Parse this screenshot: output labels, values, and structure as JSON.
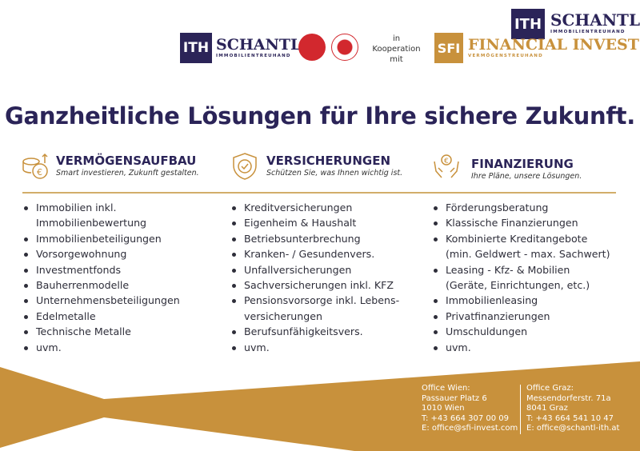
{
  "colors": {
    "navy": "#2b2458",
    "gold": "#c8913c",
    "badge_red": "#d2282e"
  },
  "header": {
    "logo_schantl_top": {
      "mark": "ITH",
      "name": "SCHANTL",
      "sub": "IMMOBILIENTREUHAND"
    },
    "logo_schantl": {
      "mark": "ITH",
      "name": "SCHANTL",
      "sub": "IMMOBILIENTREUHAND"
    },
    "badges": [
      "quality-broker-badge",
      "austrian-eagle-seal"
    ],
    "cooperation": [
      "in",
      "Kooperation",
      "mit"
    ],
    "logo_sfi": {
      "mark": "SFI",
      "name": "FINANCIAL INVEST",
      "sub": "VERMÖGENSTREUHAND"
    }
  },
  "headline": "Ganzheitliche Lösungen für Ihre sichere Zukunft.",
  "columns": [
    {
      "icon": "coins-euro-growth-icon",
      "title": "VERMÖGENSAUFBAU",
      "subtitle": "Smart investieren, Zukunft gestalten.",
      "items": [
        [
          "Immobilien inkl.",
          "Immobilienbewertung"
        ],
        [
          "Immobilienbeteiligungen"
        ],
        [
          "Vorsorgewohnung"
        ],
        [
          "Investmentfonds"
        ],
        [
          "Bauherrenmodelle"
        ],
        [
          "Unternehmensbeteiligungen"
        ],
        [
          "Edelmetalle"
        ],
        [
          "Technische Metalle"
        ],
        [
          "uvm."
        ]
      ]
    },
    {
      "icon": "shield-check-icon",
      "title": "VERSICHERUNGEN",
      "subtitle": "Schützen Sie, was Ihnen wichtig ist.",
      "items": [
        [
          "Kreditversicherungen"
        ],
        [
          "Eigenheim & Haushalt"
        ],
        [
          "Betriebsunterbrechung"
        ],
        [
          "Kranken- / Gesundenvers."
        ],
        [
          "Unfallversicherungen"
        ],
        [
          "Sachversicherungen inkl. KFZ"
        ],
        [
          "Pensionsvorsorge inkl. Lebens-",
          "versicherungen"
        ],
        [
          "Berufsunfähigkeitsvers."
        ],
        [
          "uvm."
        ]
      ]
    },
    {
      "icon": "hands-euro-coin-icon",
      "title": "FINANZIERUNG",
      "subtitle": "Ihre Pläne, unsere Lösungen.",
      "items": [
        [
          "Förderungsberatung"
        ],
        [
          "Klassische Finanzierungen"
        ],
        [
          "Kombinierte Kreditangebote",
          "(min. Geldwert - max. Sachwert)"
        ],
        [
          "Leasing - Kfz- & Mobilien",
          "(Geräte, Einrichtungen, etc.)"
        ],
        [
          "Immobilienleasing"
        ],
        [
          "Privatfinanzierungen"
        ],
        [
          "Umschuldungen"
        ],
        [
          "uvm."
        ]
      ]
    }
  ],
  "offices": [
    {
      "lines": [
        "Office Wien:",
        "Passauer Platz 6",
        "1010 Wien",
        "T: +43 664 307 00 09",
        "E: office@sfi-invest.com"
      ]
    },
    {
      "lines": [
        "Office Graz:",
        "Messendorferstr. 71a",
        "8041 Graz",
        "T: +43 664 541 10 47",
        "E: office@schantl-ith.at"
      ]
    }
  ]
}
